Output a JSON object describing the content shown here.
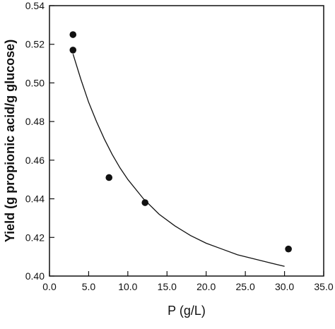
{
  "chart_data": {
    "type": "scatter",
    "title": "",
    "xlabel": "P (g/L)",
    "ylabel": "Yield (g propionic acid/g glucose)",
    "xlim": [
      0,
      35
    ],
    "ylim": [
      0.4,
      0.54
    ],
    "x_ticks": [
      "0.0",
      "5.0",
      "10.0",
      "15.0",
      "20.0",
      "25.0",
      "30.0",
      "35.0"
    ],
    "y_ticks": [
      "0.40",
      "0.42",
      "0.44",
      "0.46",
      "0.48",
      "0.50",
      "0.52",
      "0.54"
    ],
    "grid": false,
    "series": [
      {
        "points": [
          {
            "x": 3.0,
            "y": 0.525
          },
          {
            "x": 3.0,
            "y": 0.517
          },
          {
            "x": 7.6,
            "y": 0.451
          },
          {
            "x": 12.2,
            "y": 0.438
          },
          {
            "x": 30.5,
            "y": 0.414
          }
        ]
      }
    ],
    "fit_curve": {
      "points": [
        {
          "x": 3.0,
          "y": 0.515
        },
        {
          "x": 4.0,
          "y": 0.502
        },
        {
          "x": 5.0,
          "y": 0.49
        },
        {
          "x": 6.0,
          "y": 0.48
        },
        {
          "x": 7.0,
          "y": 0.471
        },
        {
          "x": 8.0,
          "y": 0.463
        },
        {
          "x": 9.0,
          "y": 0.456
        },
        {
          "x": 10.0,
          "y": 0.45
        },
        {
          "x": 12.0,
          "y": 0.44
        },
        {
          "x": 14.0,
          "y": 0.432
        },
        {
          "x": 16.0,
          "y": 0.426
        },
        {
          "x": 18.0,
          "y": 0.421
        },
        {
          "x": 20.0,
          "y": 0.417
        },
        {
          "x": 22.0,
          "y": 0.414
        },
        {
          "x": 24.0,
          "y": 0.411
        },
        {
          "x": 26.0,
          "y": 0.409
        },
        {
          "x": 28.0,
          "y": 0.407
        },
        {
          "x": 30.0,
          "y": 0.405
        }
      ]
    }
  }
}
